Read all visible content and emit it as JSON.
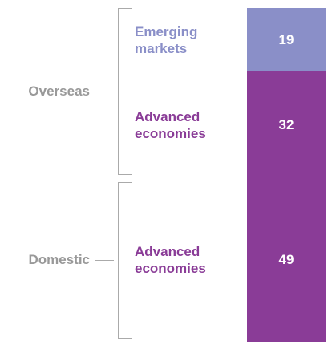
{
  "chart_data": {
    "type": "stacked_bar",
    "ylim": [
      0,
      100
    ],
    "groups": [
      {
        "name": "Overseas",
        "series": [
          {
            "name": "Emerging markets",
            "color": "#8a8fc8",
            "values": [
              19
            ]
          },
          {
            "name": "Advanced economies",
            "color": "#8a3c97",
            "values": [
              32
            ]
          }
        ]
      },
      {
        "name": "Domestic",
        "series": [
          {
            "name": "Advanced economies",
            "color": "#8a3c97",
            "values": [
              49
            ]
          }
        ]
      }
    ]
  }
}
